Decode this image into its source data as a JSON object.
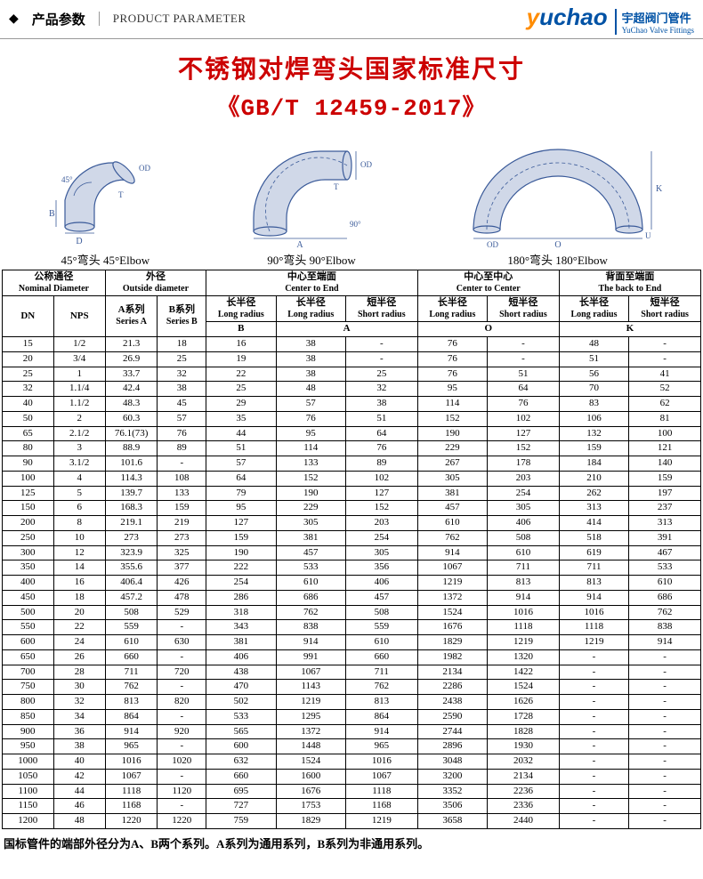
{
  "header": {
    "bullet": "◆",
    "cn": "产品参数",
    "en": "PRODUCT PARAMETER",
    "logo_main_pre": "y",
    "logo_main_rest": "uchao",
    "logo_sub_cn": "宇超阀门管件",
    "logo_sub_en": "YuChao Valve Fittings"
  },
  "title": {
    "line1": "不锈钢对焊弯头国家标准尺寸",
    "line2": "《GB/T 12459-2017》"
  },
  "diagrams": {
    "d45": "45°弯头 45°Elbow",
    "d90": "90°弯头 90°Elbow",
    "d180": "180°弯头 180°Elbow",
    "stroke": "#3a5a99",
    "fill": "#d0d8e8"
  },
  "table": {
    "groups": [
      {
        "cn": "公称通径",
        "en": "Nominal Diameter",
        "span": 2
      },
      {
        "cn": "外径",
        "en": "Outside diameter",
        "span": 2
      },
      {
        "cn": "中心至端面",
        "en": "Center to End",
        "span": 3
      },
      {
        "cn": "中心至中心",
        "en": "Center to Center",
        "span": 2
      },
      {
        "cn": "背面至端面",
        "en": "The back to End",
        "span": 2
      }
    ],
    "subheads": [
      {
        "cn": "",
        "en": "DN"
      },
      {
        "cn": "",
        "en": "NPS"
      },
      {
        "cn": "A系列",
        "en": "Series A"
      },
      {
        "cn": "B系列",
        "en": "Series B"
      },
      {
        "cn": "长半径",
        "en": "Long radius"
      },
      {
        "cn": "长半径",
        "en": "Long radius"
      },
      {
        "cn": "短半径",
        "en": "Short radius"
      },
      {
        "cn": "长半径",
        "en": "Long radius"
      },
      {
        "cn": "短半径",
        "en": "Short radius"
      },
      {
        "cn": "长半径",
        "en": "Long radius"
      },
      {
        "cn": "短半径",
        "en": "Short radius"
      }
    ],
    "letters": [
      "",
      "",
      "",
      "",
      "B",
      "A",
      "",
      "O",
      "",
      "K",
      ""
    ],
    "letter_spans": [
      1,
      1,
      1,
      1,
      1,
      2,
      0,
      2,
      0,
      2,
      0
    ],
    "rows": [
      [
        "15",
        "1/2",
        "21.3",
        "18",
        "16",
        "38",
        "-",
        "76",
        "-",
        "48",
        "-"
      ],
      [
        "20",
        "3/4",
        "26.9",
        "25",
        "19",
        "38",
        "-",
        "76",
        "-",
        "51",
        "-"
      ],
      [
        "25",
        "1",
        "33.7",
        "32",
        "22",
        "38",
        "25",
        "76",
        "51",
        "56",
        "41"
      ],
      [
        "32",
        "1.1/4",
        "42.4",
        "38",
        "25",
        "48",
        "32",
        "95",
        "64",
        "70",
        "52"
      ],
      [
        "40",
        "1.1/2",
        "48.3",
        "45",
        "29",
        "57",
        "38",
        "114",
        "76",
        "83",
        "62"
      ],
      [
        "50",
        "2",
        "60.3",
        "57",
        "35",
        "76",
        "51",
        "152",
        "102",
        "106",
        "81"
      ],
      [
        "65",
        "2.1/2",
        "76.1(73)",
        "76",
        "44",
        "95",
        "64",
        "190",
        "127",
        "132",
        "100"
      ],
      [
        "80",
        "3",
        "88.9",
        "89",
        "51",
        "114",
        "76",
        "229",
        "152",
        "159",
        "121"
      ],
      [
        "90",
        "3.1/2",
        "101.6",
        "-",
        "57",
        "133",
        "89",
        "267",
        "178",
        "184",
        "140"
      ],
      [
        "100",
        "4",
        "114.3",
        "108",
        "64",
        "152",
        "102",
        "305",
        "203",
        "210",
        "159"
      ],
      [
        "125",
        "5",
        "139.7",
        "133",
        "79",
        "190",
        "127",
        "381",
        "254",
        "262",
        "197"
      ],
      [
        "150",
        "6",
        "168.3",
        "159",
        "95",
        "229",
        "152",
        "457",
        "305",
        "313",
        "237"
      ],
      [
        "200",
        "8",
        "219.1",
        "219",
        "127",
        "305",
        "203",
        "610",
        "406",
        "414",
        "313"
      ],
      [
        "250",
        "10",
        "273",
        "273",
        "159",
        "381",
        "254",
        "762",
        "508",
        "518",
        "391"
      ],
      [
        "300",
        "12",
        "323.9",
        "325",
        "190",
        "457",
        "305",
        "914",
        "610",
        "619",
        "467"
      ],
      [
        "350",
        "14",
        "355.6",
        "377",
        "222",
        "533",
        "356",
        "1067",
        "711",
        "711",
        "533"
      ],
      [
        "400",
        "16",
        "406.4",
        "426",
        "254",
        "610",
        "406",
        "1219",
        "813",
        "813",
        "610"
      ],
      [
        "450",
        "18",
        "457.2",
        "478",
        "286",
        "686",
        "457",
        "1372",
        "914",
        "914",
        "686"
      ],
      [
        "500",
        "20",
        "508",
        "529",
        "318",
        "762",
        "508",
        "1524",
        "1016",
        "1016",
        "762"
      ],
      [
        "550",
        "22",
        "559",
        "-",
        "343",
        "838",
        "559",
        "1676",
        "1118",
        "1118",
        "838"
      ],
      [
        "600",
        "24",
        "610",
        "630",
        "381",
        "914",
        "610",
        "1829",
        "1219",
        "1219",
        "914"
      ],
      [
        "650",
        "26",
        "660",
        "-",
        "406",
        "991",
        "660",
        "1982",
        "1320",
        "-",
        "-"
      ],
      [
        "700",
        "28",
        "711",
        "720",
        "438",
        "1067",
        "711",
        "2134",
        "1422",
        "-",
        "-"
      ],
      [
        "750",
        "30",
        "762",
        "-",
        "470",
        "1143",
        "762",
        "2286",
        "1524",
        "-",
        "-"
      ],
      [
        "800",
        "32",
        "813",
        "820",
        "502",
        "1219",
        "813",
        "2438",
        "1626",
        "-",
        "-"
      ],
      [
        "850",
        "34",
        "864",
        "-",
        "533",
        "1295",
        "864",
        "2590",
        "1728",
        "-",
        "-"
      ],
      [
        "900",
        "36",
        "914",
        "920",
        "565",
        "1372",
        "914",
        "2744",
        "1828",
        "-",
        "-"
      ],
      [
        "950",
        "38",
        "965",
        "-",
        "600",
        "1448",
        "965",
        "2896",
        "1930",
        "-",
        "-"
      ],
      [
        "1000",
        "40",
        "1016",
        "1020",
        "632",
        "1524",
        "1016",
        "3048",
        "2032",
        "-",
        "-"
      ],
      [
        "1050",
        "42",
        "1067",
        "-",
        "660",
        "1600",
        "1067",
        "3200",
        "2134",
        "-",
        "-"
      ],
      [
        "1100",
        "44",
        "1118",
        "1120",
        "695",
        "1676",
        "1118",
        "3352",
        "2236",
        "-",
        "-"
      ],
      [
        "1150",
        "46",
        "1168",
        "-",
        "727",
        "1753",
        "1168",
        "3506",
        "2336",
        "-",
        "-"
      ],
      [
        "1200",
        "48",
        "1220",
        "1220",
        "759",
        "1829",
        "1219",
        "3658",
        "2440",
        "-",
        "-"
      ]
    ]
  },
  "footnote": "国标管件的端部外径分为A、B两个系列。A系列为通用系列，B系列为非通用系列。"
}
